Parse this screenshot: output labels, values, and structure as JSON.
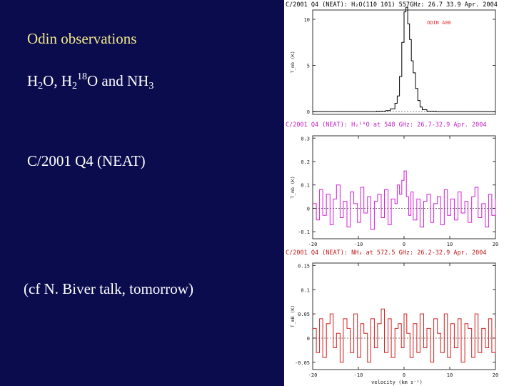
{
  "slide": {
    "title": "Odin observations",
    "species": {
      "a": "H",
      "a_sub": "2",
      "b": "O, H",
      "b_sub": "2",
      "b_sup": "18",
      "c": "O and NH",
      "c_sub": "3"
    },
    "comet": "C/2001 Q4 (NEAT)",
    "note": "(cf N. Biver talk, tomorrow)"
  },
  "colors": {
    "background": "#0b0c4e",
    "title": "#f2e88a",
    "text": "#ffffff",
    "h2o": "#000000",
    "h2_18o": "#d61ed6",
    "nh3": "#d42020"
  },
  "chart_data": [
    {
      "type": "line",
      "header": "C/2001 Q4 (NEAT): H₂O(110  101) 557GHz: 26.7  33.9 Apr. 2004",
      "annotation": "ODIN  A08",
      "xlim": [
        -20,
        20
      ],
      "ylim": [
        -0.3,
        11
      ],
      "yticks": [
        0,
        5,
        10
      ],
      "ytick_labels": [
        "0",
        "5",
        "10"
      ],
      "ylabel": "T_mb (K)",
      "series": [
        {
          "color": "#000000",
          "x": [
            -20,
            -12,
            -6,
            -4,
            -3,
            -2,
            -1.5,
            -1,
            -0.5,
            0,
            0.4,
            0.8,
            1.2,
            1.6,
            2,
            2.5,
            3,
            3.5,
            4,
            5,
            7,
            12,
            20
          ],
          "y": [
            0,
            0,
            0.05,
            0.1,
            0.3,
            0.9,
            1.7,
            3.8,
            7.5,
            10.8,
            11.3,
            9.5,
            7.8,
            5.5,
            4.2,
            2.5,
            1.2,
            0.5,
            0.2,
            0.05,
            0,
            0,
            0
          ]
        }
      ]
    },
    {
      "type": "line",
      "header": "C/2001 Q4 (NEAT): H₂¹⁸O at 548 GHz: 26.7-32.9 Apr. 2004",
      "xlim": [
        -20,
        20
      ],
      "ylim": [
        -0.13,
        0.31
      ],
      "yticks": [
        -0.1,
        0,
        0.1,
        0.2,
        0.3
      ],
      "ytick_labels": [
        "-0.1",
        "0",
        "0.1",
        "0.2",
        "0.3"
      ],
      "xticks": [
        -20,
        -10,
        0,
        10,
        20
      ],
      "xtick_labels": [
        "-20",
        "-10",
        "0",
        "10",
        "20"
      ],
      "ylabel": "T_mb (K)",
      "series": [
        {
          "color": "#d61ed6",
          "x": [
            -20,
            -19.2,
            -18.5,
            -17.8,
            -17,
            -16.2,
            -15.5,
            -14.8,
            -14,
            -13.3,
            -12.5,
            -11.8,
            -11,
            -10.2,
            -9.5,
            -8.8,
            -8,
            -7.3,
            -6.5,
            -5.8,
            -5,
            -4.3,
            -3.5,
            -2.8,
            -2,
            -1.5,
            -1,
            -0.5,
            0,
            0.5,
            1,
            1.5,
            2,
            2.8,
            3.5,
            4.3,
            5,
            5.8,
            6.5,
            7.3,
            8,
            8.8,
            9.5,
            10.2,
            11,
            11.8,
            12.5,
            13.3,
            14,
            14.8,
            15.5,
            16.2,
            17,
            17.8,
            18.5,
            19.2,
            20
          ],
          "y": [
            0.02,
            -0.05,
            0.08,
            -0.03,
            0.06,
            -0.07,
            0.04,
            0.1,
            -0.04,
            0.03,
            -0.08,
            0.07,
            0.02,
            -0.06,
            0.09,
            -0.02,
            0.05,
            -0.09,
            0.03,
            0.06,
            -0.04,
            0.08,
            -0.07,
            0.04,
            0.02,
            0.1,
            0.06,
            0.12,
            0.16,
            0.05,
            -0.03,
            0.07,
            -0.05,
            0.04,
            -0.08,
            0.03,
            0.06,
            -0.06,
            0.02,
            0.05,
            -0.07,
            0.08,
            -0.03,
            0.04,
            -0.05,
            0.07,
            -0.02,
            0.03,
            -0.06,
            0.05,
            0.09,
            -0.04,
            0.02,
            -0.08,
            0.06,
            -0.03,
            0.04
          ]
        }
      ]
    },
    {
      "type": "line",
      "header": "C/2001 Q4 (NEAT): NH₃ at 572.5 GHz: 26.2-32.9 Apr. 2004",
      "xlim": [
        -20,
        20
      ],
      "ylim": [
        -0.065,
        0.155
      ],
      "yticks": [
        -0.05,
        0,
        0.05,
        0.1,
        0.15
      ],
      "ytick_labels": [
        "-0.05",
        "0",
        "0.05",
        "0.1",
        "0.15"
      ],
      "xticks": [
        -20,
        -10,
        0,
        10,
        20
      ],
      "xtick_labels": [
        "-20",
        "-10",
        "0",
        "10",
        "20"
      ],
      "xlabel": "velocity (km s⁻¹)",
      "ylabel": "T_mB (K)",
      "series": [
        {
          "color": "#d42020",
          "x": [
            -20,
            -19.2,
            -18.5,
            -17.8,
            -17,
            -16.2,
            -15.5,
            -14.8,
            -14,
            -13.3,
            -12.5,
            -11.8,
            -11,
            -10.2,
            -9.5,
            -8.8,
            -8,
            -7.3,
            -6.5,
            -5.8,
            -5,
            -4.3,
            -3.5,
            -2.8,
            -2,
            -1.3,
            -0.6,
            0,
            0.6,
            1.3,
            2,
            2.8,
            3.5,
            4.3,
            5,
            5.8,
            6.5,
            7.3,
            8,
            8.8,
            9.5,
            10.2,
            11,
            11.8,
            12.5,
            13.3,
            14,
            14.8,
            15.5,
            16.2,
            17,
            17.8,
            18.5,
            19.2,
            20
          ],
          "y": [
            0.02,
            -0.03,
            0.04,
            -0.04,
            0.03,
            0.05,
            -0.02,
            0.01,
            -0.05,
            0.04,
            0.02,
            -0.03,
            0.05,
            -0.04,
            0.03,
            0.01,
            -0.05,
            0.04,
            -0.02,
            0.03,
            0.06,
            -0.03,
            0.04,
            -0.04,
            0.02,
            0.03,
            -0.02,
            0.05,
            0.01,
            -0.04,
            0.03,
            -0.03,
            0.05,
            -0.02,
            0.02,
            -0.05,
            0.04,
            0.01,
            -0.03,
            0.05,
            -0.04,
            0.03,
            -0.02,
            0.04,
            -0.05,
            0.03,
            0.02,
            -0.04,
            0.05,
            -0.03,
            0.02,
            -0.02,
            0.04,
            -0.03,
            0.02
          ]
        }
      ]
    }
  ]
}
